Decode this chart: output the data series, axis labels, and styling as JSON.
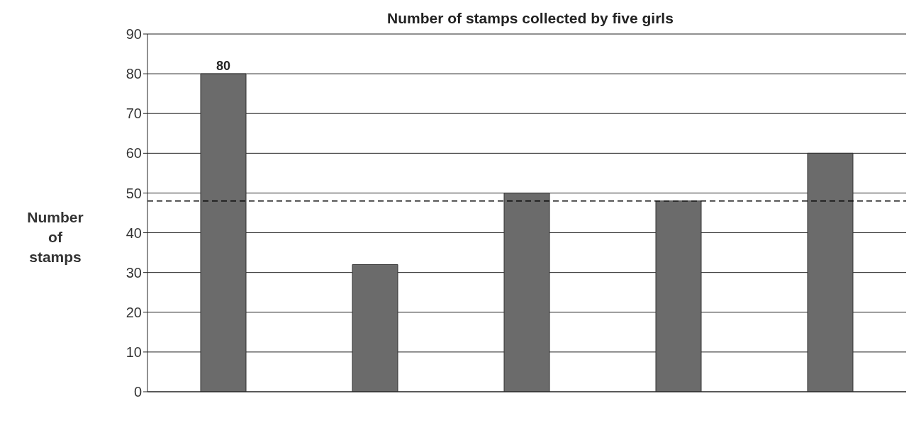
{
  "chart_data": {
    "type": "bar",
    "title": "Number of stamps collected by five girls",
    "ylabel": "Number of stamps",
    "categories": [
      null,
      null,
      null,
      null,
      null
    ],
    "values": [
      80,
      32,
      50,
      48,
      60
    ],
    "color": "#6b6b6b",
    "value_labels": [
      "80",
      null,
      null,
      null,
      null
    ],
    "ylim": [
      0,
      90
    ],
    "yticks": [
      0,
      10,
      20,
      30,
      40,
      50,
      60,
      70,
      80,
      90
    ],
    "grid": "y",
    "tick_labels": "y",
    "ref_lines": [
      {
        "axis": "y",
        "value": 48,
        "line_style": "dashed",
        "color": "#000000"
      }
    ]
  }
}
